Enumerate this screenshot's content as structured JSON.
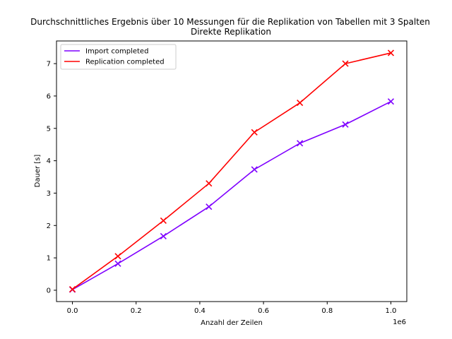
{
  "chart_data": {
    "type": "line",
    "title": "Durchschnittliches Ergebnis über 10 Messungen für die Replikation von Tabellen mit 3 Spalten",
    "subtitle": "Direkte Replikation",
    "xlabel": "Anzahl der Zeilen",
    "ylabel": "Dauer [s]",
    "x_offset_label": "1e6",
    "xlim": [
      -0.05,
      1.05
    ],
    "ylim": [
      -0.35,
      7.7
    ],
    "x_ticks": [
      0,
      0.2,
      0.4,
      0.6,
      0.8,
      1.0
    ],
    "x_tick_labels": [
      "0.0",
      "0.2",
      "0.4",
      "0.6",
      "0.8",
      "1.0"
    ],
    "y_ticks": [
      0,
      1,
      2,
      3,
      4,
      5,
      6,
      7
    ],
    "y_tick_labels": [
      "0",
      "1",
      "2",
      "3",
      "4",
      "5",
      "6",
      "7"
    ],
    "grid": false,
    "legend_position": "top-left",
    "x": [
      0,
      0.1429,
      0.2857,
      0.4286,
      0.5714,
      0.7143,
      0.8571,
      1.0
    ],
    "series": [
      {
        "name": "Import completed",
        "color": "#7f00ff",
        "marker": "x",
        "values": [
          0.02,
          0.82,
          1.67,
          2.58,
          3.73,
          4.54,
          5.12,
          5.83
        ]
      },
      {
        "name": "Replication completed",
        "color": "#ff0000",
        "marker": "x",
        "values": [
          0.03,
          1.05,
          2.15,
          3.3,
          4.88,
          5.79,
          7.0,
          7.33
        ]
      }
    ]
  }
}
